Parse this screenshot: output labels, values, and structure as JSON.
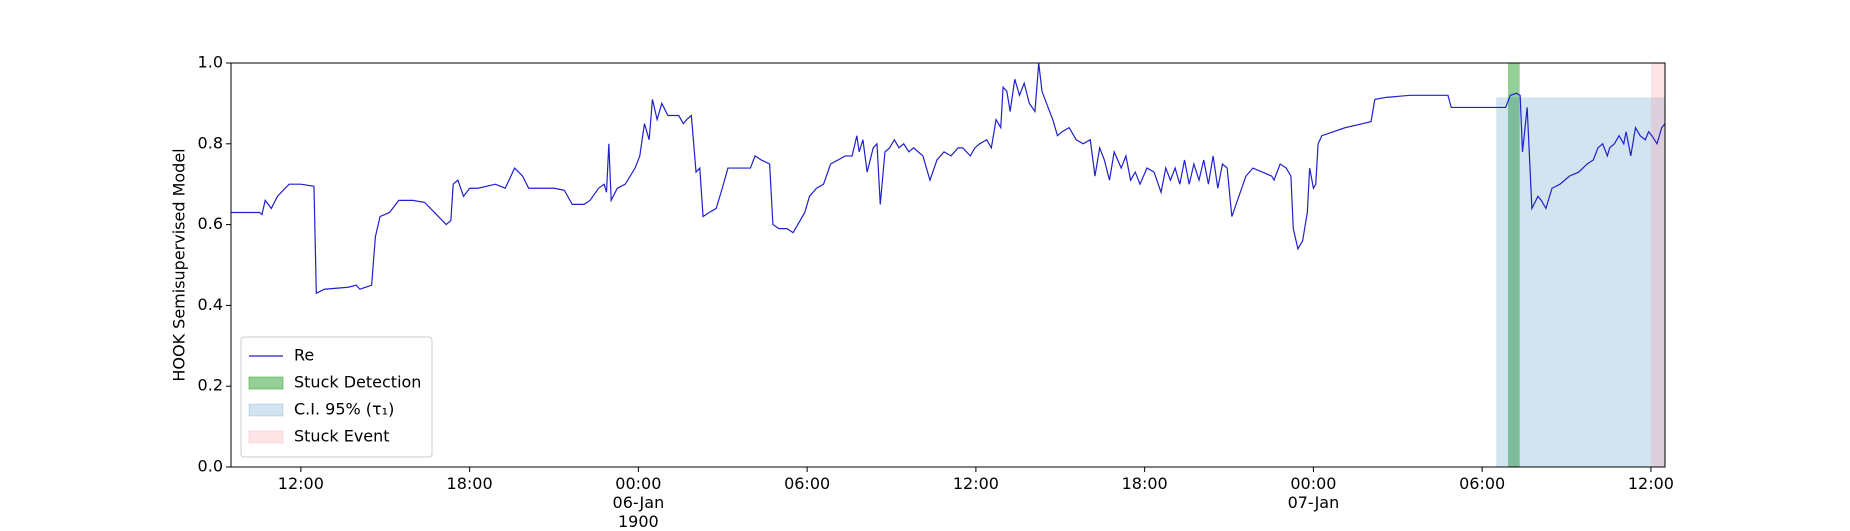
{
  "chart_data": {
    "type": "line",
    "y_label": "HOOK Semisupervised Model",
    "xlim": [
      "1900-01-05T09:31",
      "1900-01-07T12:30"
    ],
    "ylim": [
      0,
      1
    ],
    "yticks": [
      {
        "value": 0,
        "label": "0.0"
      },
      0.2,
      0.4,
      0.6,
      0.8,
      {
        "value": 1,
        "label": "1.0"
      }
    ],
    "xticks": [
      {
        "value": "1900-01-05T12:00",
        "label": "12:00"
      },
      {
        "value": "1900-01-05T18:00",
        "label": "18:00"
      },
      {
        "value": "1900-01-06T00:00",
        "label": "00:00\n06-Jan\n1900"
      },
      {
        "value": "1900-01-06T06:00",
        "label": "06:00"
      },
      {
        "value": "1900-01-06T12:00",
        "label": "12:00"
      },
      {
        "value": "1900-01-06T18:00",
        "label": "18:00"
      },
      {
        "value": "1900-01-07T00:00",
        "label": "00:00\n07-Jan"
      },
      {
        "value": "1900-01-07T06:00",
        "label": "06:00"
      },
      {
        "value": "1900-01-07T12:00",
        "label": "12:00"
      }
    ],
    "legend": "lower left",
    "series": [
      {
        "name": "Re",
        "color": "#2020cc",
        "x": [
          "1900-01-05T09:31",
          "1900-01-05T10:32",
          "1900-01-05T10:37",
          "1900-01-05T10:44",
          "1900-01-05T10:57",
          "1900-01-05T11:10",
          "1900-01-05T11:35",
          "1900-01-05T12:00",
          "1900-01-05T12:28",
          "1900-01-05T12:33",
          "1900-01-05T12:50",
          "1900-01-05T13:41",
          "1900-01-05T13:58",
          "1900-01-05T14:06",
          "1900-01-05T14:31",
          "1900-01-05T14:39",
          "1900-01-05T14:49",
          "1900-01-05T15:09",
          "1900-01-05T15:29",
          "1900-01-05T15:59",
          "1900-01-05T16:24",
          "1900-01-05T16:45",
          "1900-01-05T17:10",
          "1900-01-05T17:20",
          "1900-01-05T17:25",
          "1900-01-05T17:35",
          "1900-01-05T17:47",
          "1900-01-05T18:00",
          "1900-01-05T18:18",
          "1900-01-05T18:55",
          "1900-01-05T19:16",
          "1900-01-05T19:36",
          "1900-01-05T19:53",
          "1900-01-05T20:06",
          "1900-01-05T21:01",
          "1900-01-05T21:22",
          "1900-01-05T21:39",
          "1900-01-05T22:04",
          "1900-01-05T22:17",
          "1900-01-05T22:35",
          "1900-01-05T22:47",
          "1900-01-05T22:52",
          "1900-01-05T22:57",
          "1900-01-05T23:02",
          "1900-01-05T23:15",
          "1900-01-05T23:32",
          "1900-01-05T23:53",
          "1900-01-06T00:03",
          "1900-01-06T00:13",
          "1900-01-06T00:23",
          "1900-01-06T00:30",
          "1900-01-06T00:40",
          "1900-01-06T00:50",
          "1900-01-06T01:03",
          "1900-01-06T01:26",
          "1900-01-06T01:36",
          "1900-01-06T01:43",
          "1900-01-06T01:53",
          "1900-01-06T02:03",
          "1900-01-06T02:11",
          "1900-01-06T02:18",
          "1900-01-06T02:31",
          "1900-01-06T02:46",
          "1900-01-06T02:59",
          "1900-01-06T03:11",
          "1900-01-06T03:44",
          "1900-01-06T03:59",
          "1900-01-06T04:09",
          "1900-01-06T04:22",
          "1900-01-06T04:40",
          "1900-01-06T04:47",
          "1900-01-06T05:00",
          "1900-01-06T05:17",
          "1900-01-06T05:30",
          "1900-01-06T05:40",
          "1900-01-06T05:55",
          "1900-01-06T06:05",
          "1900-01-06T06:20",
          "1900-01-06T06:35",
          "1900-01-06T06:50",
          "1900-01-06T07:06",
          "1900-01-06T07:21",
          "1900-01-06T07:36",
          "1900-01-06T07:46",
          "1900-01-06T07:51",
          "1900-01-06T07:59",
          "1900-01-06T08:08",
          "1900-01-06T08:21",
          "1900-01-06T08:29",
          "1900-01-06T08:36",
          "1900-01-06T08:46",
          "1900-01-06T08:56",
          "1900-01-06T09:06",
          "1900-01-06T09:16",
          "1900-01-06T09:26",
          "1900-01-06T09:37",
          "1900-01-06T09:47",
          "1900-01-06T09:57",
          "1900-01-06T10:07",
          "1900-01-06T10:22",
          "1900-01-06T10:37",
          "1900-01-06T10:52",
          "1900-01-06T11:07",
          "1900-01-06T11:22",
          "1900-01-06T11:32",
          "1900-01-06T11:48",
          "1900-01-06T11:58",
          "1900-01-06T12:08",
          "1900-01-06T12:23",
          "1900-01-06T12:33",
          "1900-01-06T12:43",
          "1900-01-06T12:53",
          "1900-01-06T12:58",
          "1900-01-06T13:06",
          "1900-01-06T13:13",
          "1900-01-06T13:23",
          "1900-01-06T13:33",
          "1900-01-06T13:43",
          "1900-01-06T13:54",
          "1900-01-06T14:06",
          "1900-01-06T14:14",
          "1900-01-06T14:21",
          "1900-01-06T14:34",
          "1900-01-06T14:44",
          "1900-01-06T14:54",
          "1900-01-06T15:04",
          "1900-01-06T15:19",
          "1900-01-06T15:34",
          "1900-01-06T15:49",
          "1900-01-06T16:04",
          "1900-01-06T16:14",
          "1900-01-06T16:24",
          "1900-01-06T16:34",
          "1900-01-06T16:45",
          "1900-01-06T16:55",
          "1900-01-06T17:10",
          "1900-01-06T17:20",
          "1900-01-06T17:30",
          "1900-01-06T17:40",
          "1900-01-06T17:50",
          "1900-01-06T18:05",
          "1900-01-06T18:20",
          "1900-01-06T18:35",
          "1900-01-06T18:45",
          "1900-01-06T18:55",
          "1900-01-06T19:05",
          "1900-01-06T19:15",
          "1900-01-06T19:25",
          "1900-01-06T19:35",
          "1900-01-06T19:45",
          "1900-01-06T19:56",
          "1900-01-06T20:06",
          "1900-01-06T20:16",
          "1900-01-06T20:26",
          "1900-01-06T20:36",
          "1900-01-06T20:46",
          "1900-01-06T20:56",
          "1900-01-06T21:06",
          "1900-01-06T21:21",
          "1900-01-06T21:36",
          "1900-01-06T21:51",
          "1900-01-06T22:11",
          "1900-01-06T22:31",
          "1900-01-06T22:36",
          "1900-01-06T22:49",
          "1900-01-06T23:02",
          "1900-01-06T23:12",
          "1900-01-06T23:17",
          "1900-01-06T23:27",
          "1900-01-06T23:37",
          "1900-01-06T23:47",
          "1900-01-06T23:52",
          "1900-01-07T00:00",
          "1900-01-07T00:05",
          "1900-01-07T00:10",
          "1900-01-07T00:18",
          "1900-01-07T00:43",
          "1900-01-07T01:08",
          "1900-01-07T01:46",
          "1900-01-07T02:03",
          "1900-01-07T02:11",
          "1900-01-07T02:36",
          "1900-01-07T03:26",
          "1900-01-07T04:04",
          "1900-01-07T04:47",
          "1900-01-07T04:54",
          "1900-01-07T06:22",
          "1900-01-07T06:50",
          "1900-01-07T07:00",
          "1900-01-07T07:13",
          "1900-01-07T07:21",
          "1900-01-07T07:26",
          "1900-01-07T07:36",
          "1900-01-07T07:46",
          "1900-01-07T07:59",
          "1900-01-07T08:06",
          "1900-01-07T08:16",
          "1900-01-07T08:29",
          "1900-01-07T08:46",
          "1900-01-07T09:06",
          "1900-01-07T09:26",
          "1900-01-07T09:44",
          "1900-01-07T09:57",
          "1900-01-07T10:07",
          "1900-01-07T10:17",
          "1900-01-07T10:27",
          "1900-01-07T10:32",
          "1900-01-07T10:42",
          "1900-01-07T10:52",
          "1900-01-07T11:02",
          "1900-01-07T11:07",
          "1900-01-07T11:17",
          "1900-01-07T11:27",
          "1900-01-07T11:37",
          "1900-01-07T11:48",
          "1900-01-07T11:55",
          "1900-01-07T12:02",
          "1900-01-07T12:13",
          "1900-01-07T12:23",
          "1900-01-07T12:30"
        ],
        "values": [
          0.63,
          0.63,
          0.625,
          0.66,
          0.64,
          0.67,
          0.7,
          0.7,
          0.695,
          0.43,
          0.44,
          0.445,
          0.45,
          0.44,
          0.45,
          0.57,
          0.62,
          0.63,
          0.66,
          0.66,
          0.655,
          0.63,
          0.6,
          0.61,
          0.7,
          0.71,
          0.67,
          0.69,
          0.69,
          0.7,
          0.69,
          0.74,
          0.72,
          0.69,
          0.69,
          0.685,
          0.65,
          0.65,
          0.66,
          0.69,
          0.7,
          0.68,
          0.8,
          0.66,
          0.69,
          0.7,
          0.74,
          0.77,
          0.85,
          0.81,
          0.91,
          0.86,
          0.9,
          0.87,
          0.87,
          0.85,
          0.86,
          0.87,
          0.73,
          0.74,
          0.62,
          0.63,
          0.64,
          0.69,
          0.74,
          0.74,
          0.74,
          0.77,
          0.76,
          0.75,
          0.6,
          0.59,
          0.59,
          0.58,
          0.6,
          0.63,
          0.67,
          0.69,
          0.7,
          0.75,
          0.76,
          0.77,
          0.77,
          0.82,
          0.78,
          0.81,
          0.73,
          0.79,
          0.8,
          0.65,
          0.78,
          0.79,
          0.81,
          0.79,
          0.8,
          0.78,
          0.79,
          0.78,
          0.77,
          0.71,
          0.76,
          0.78,
          0.77,
          0.79,
          0.79,
          0.77,
          0.79,
          0.8,
          0.81,
          0.79,
          0.86,
          0.84,
          0.94,
          0.93,
          0.88,
          0.96,
          0.92,
          0.95,
          0.9,
          0.88,
          1.0,
          0.93,
          0.89,
          0.86,
          0.82,
          0.83,
          0.84,
          0.81,
          0.8,
          0.81,
          0.72,
          0.79,
          0.76,
          0.71,
          0.78,
          0.74,
          0.77,
          0.71,
          0.73,
          0.7,
          0.74,
          0.73,
          0.68,
          0.74,
          0.71,
          0.74,
          0.7,
          0.76,
          0.7,
          0.75,
          0.71,
          0.76,
          0.7,
          0.77,
          0.69,
          0.75,
          0.74,
          0.62,
          0.67,
          0.72,
          0.74,
          0.73,
          0.72,
          0.71,
          0.75,
          0.74,
          0.72,
          0.59,
          0.54,
          0.56,
          0.63,
          0.74,
          0.69,
          0.7,
          0.8,
          0.82,
          0.83,
          0.84,
          0.85,
          0.855,
          0.91,
          0.915,
          0.92,
          0.92,
          0.92,
          0.89,
          0.89,
          0.89,
          0.92,
          0.925,
          0.92,
          0.78,
          0.89,
          0.64,
          0.67,
          0.66,
          0.64,
          0.69,
          0.7,
          0.72,
          0.73,
          0.75,
          0.76,
          0.79,
          0.8,
          0.77,
          0.79,
          0.8,
          0.82,
          0.8,
          0.83,
          0.77,
          0.84,
          0.82,
          0.81,
          0.83,
          0.82,
          0.8,
          0.84,
          0.85
        ]
      }
    ],
    "spans": [
      {
        "name": "Stuck Detection",
        "color": "#2ca02c",
        "alpha": 0.5,
        "start": "1900-01-07T06:55",
        "end": "1900-01-07T07:20"
      },
      {
        "name": "C.I. 95% (τ₁)",
        "color": "#1f77b4",
        "alpha": 0.2,
        "start": "1900-01-07T06:30",
        "end": "1900-01-07T12:30",
        "ymax": 0.915
      },
      {
        "name": "Stuck Event",
        "color": "#ff8fa0",
        "alpha": 0.25,
        "start": "1900-01-07T12:00",
        "end": "1900-01-07T12:30"
      }
    ]
  }
}
